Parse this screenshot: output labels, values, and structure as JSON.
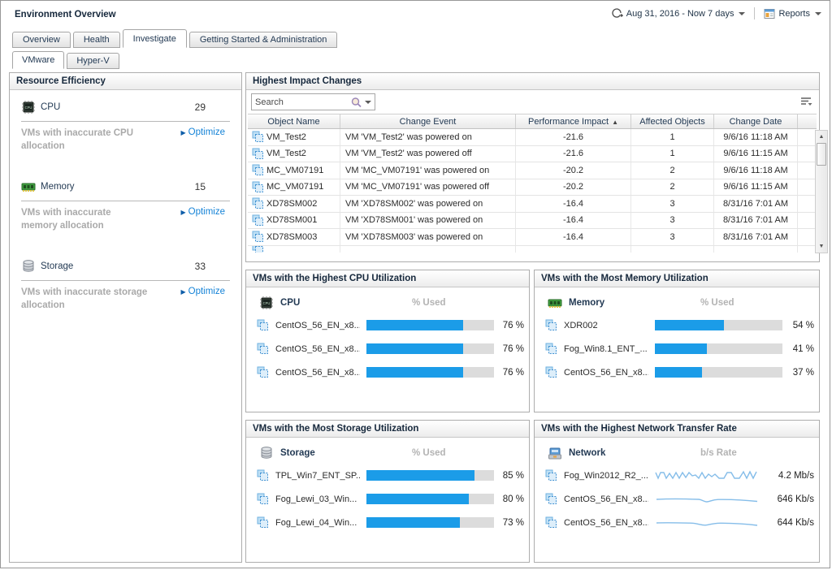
{
  "header": {
    "title": "Environment Overview",
    "time_range": "Aug 31, 2016 - Now 7 days",
    "reports_label": "Reports"
  },
  "tabs": {
    "items": [
      "Overview",
      "Health",
      "Investigate",
      "Getting Started & Administration"
    ],
    "active": "Investigate"
  },
  "subtabs": {
    "items": [
      "VMware",
      "Hyper-V"
    ],
    "active": "VMware"
  },
  "resource_efficiency": {
    "title": "Resource Efficiency",
    "metrics": [
      {
        "name": "CPU",
        "value": "29",
        "note": "VMs with inaccurate CPU allocation",
        "action": "Optimize"
      },
      {
        "name": "Memory",
        "value": "15",
        "note": "VMs with inaccurate memory allocation",
        "action": "Optimize"
      },
      {
        "name": "Storage",
        "value": "33",
        "note": "VMs with inaccurate storage allocation",
        "action": "Optimize"
      }
    ]
  },
  "impact_changes": {
    "title": "Highest Impact Changes",
    "search_placeholder": "Search",
    "columns": {
      "object": "Object Name",
      "event": "Change Event",
      "impact": "Performance Impact",
      "affected": "Affected Objects",
      "date": "Change Date"
    },
    "sort": {
      "column": "Performance Impact",
      "direction": "asc"
    },
    "rows": [
      {
        "object": "VM_Test2",
        "event": "VM 'VM_Test2' was powered on",
        "impact": "-21.6",
        "affected": "1",
        "date": "9/6/16 11:18 AM"
      },
      {
        "object": "VM_Test2",
        "event": "VM 'VM_Test2' was powered off",
        "impact": "-21.6",
        "affected": "1",
        "date": "9/6/16 11:15 AM"
      },
      {
        "object": "MC_VM07191",
        "event": "VM 'MC_VM07191' was powered on",
        "impact": "-20.2",
        "affected": "2",
        "date": "9/6/16 11:18 AM"
      },
      {
        "object": "MC_VM07191",
        "event": "VM 'MC_VM07191' was powered off",
        "impact": "-20.2",
        "affected": "2",
        "date": "9/6/16 11:15 AM"
      },
      {
        "object": "XD78SM002",
        "event": "VM 'XD78SM002' was powered on",
        "impact": "-16.4",
        "affected": "3",
        "date": "8/31/16 7:01 AM"
      },
      {
        "object": "XD78SM001",
        "event": "VM 'XD78SM001' was powered on",
        "impact": "-16.4",
        "affected": "3",
        "date": "8/31/16 7:01 AM"
      },
      {
        "object": "XD78SM003",
        "event": "VM 'XD78SM003' was powered on",
        "impact": "-16.4",
        "affected": "3",
        "date": "8/31/16 7:01 AM"
      }
    ]
  },
  "utilization_panels": {
    "cpu": {
      "title": "VMs with the Highest CPU Utilization",
      "metric_label": "CPU",
      "value_label": "% Used",
      "rows": [
        {
          "name": "CentOS_56_EN_x8...",
          "percent": 76,
          "value": "76 %"
        },
        {
          "name": "CentOS_56_EN_x8...",
          "percent": 76,
          "value": "76 %"
        },
        {
          "name": "CentOS_56_EN_x8...",
          "percent": 76,
          "value": "76 %"
        }
      ]
    },
    "memory": {
      "title": "VMs with the Most Memory Utilization",
      "metric_label": "Memory",
      "value_label": "% Used",
      "rows": [
        {
          "name": "XDR002",
          "percent": 54,
          "value": "54 %"
        },
        {
          "name": "Fog_Win8.1_ENT_...",
          "percent": 41,
          "value": "41 %"
        },
        {
          "name": "CentOS_56_EN_x8...",
          "percent": 37,
          "value": "37 %"
        }
      ]
    },
    "storage": {
      "title": "VMs with the Most Storage Utilization",
      "metric_label": "Storage",
      "value_label": "% Used",
      "rows": [
        {
          "name": "TPL_Win7_ENT_SP...",
          "percent": 85,
          "value": "85 %"
        },
        {
          "name": "Fog_Lewi_03_Win...",
          "percent": 80,
          "value": "80 %"
        },
        {
          "name": "Fog_Lewi_04_Win...",
          "percent": 73,
          "value": "73 %"
        }
      ]
    },
    "network": {
      "title": "VMs with the Highest Network Transfer Rate",
      "metric_label": "Network",
      "value_label": "b/s Rate",
      "rows": [
        {
          "name": "Fog_Win2012_R2_...",
          "value": "4.2 Mb/s"
        },
        {
          "name": "CentOS_56_EN_x8...",
          "value": "646 Kb/s"
        },
        {
          "name": "CentOS_56_EN_x8...",
          "value": "644 Kb/s"
        }
      ]
    }
  },
  "colors": {
    "bar_fill": "#1b9ce8",
    "link_blue": "#1583d7",
    "sparkline": "#85bde9",
    "header_text": "#16283c"
  }
}
